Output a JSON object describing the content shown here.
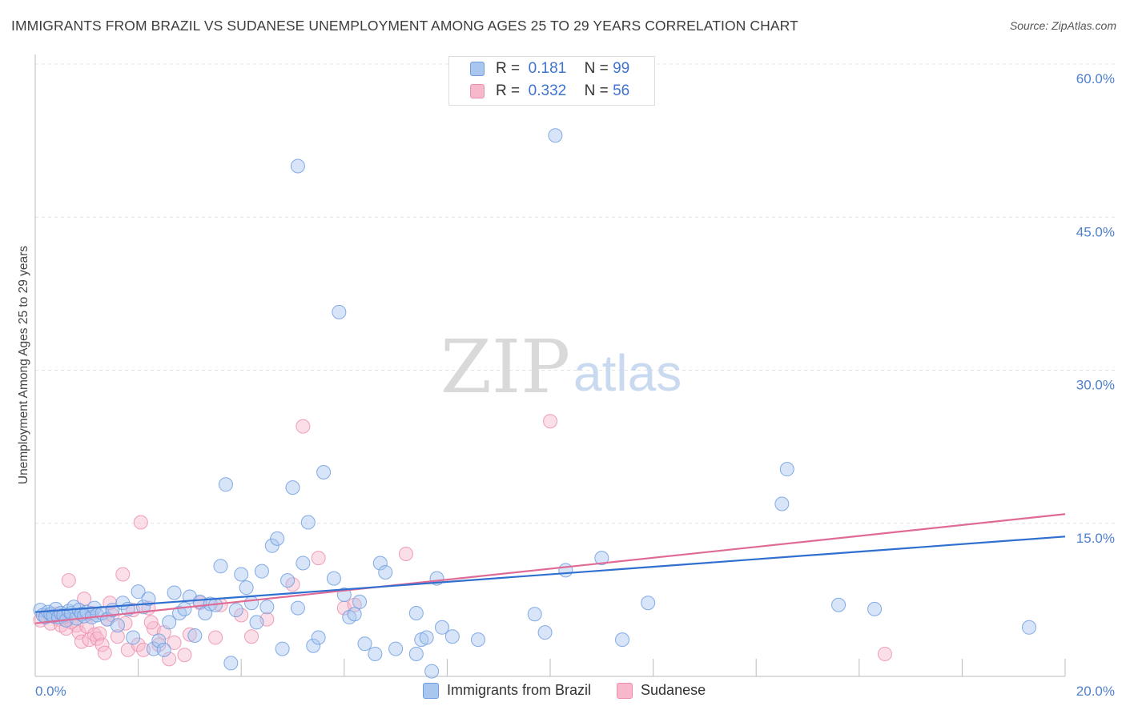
{
  "title": "IMMIGRANTS FROM BRAZIL VS SUDANESE UNEMPLOYMENT AMONG AGES 25 TO 29 YEARS CORRELATION CHART",
  "source": "Source: ZipAtlas.com",
  "watermark": {
    "zip": "ZIP",
    "atlas": "atlas"
  },
  "legend": {
    "rows": [
      {
        "r_label": "R =",
        "r_value": "0.181",
        "n_label": "N =",
        "n_value": "99"
      },
      {
        "r_label": "R =",
        "r_value": "0.332",
        "n_label": "N =",
        "n_value": "56"
      }
    ]
  },
  "bottom_legend": {
    "series1": "Immigrants from Brazil",
    "series2": "Sudanese"
  },
  "colors": {
    "series1_fill": "#a9c6ef",
    "series1_stroke": "#6f9ee0",
    "series1_line": "#2f6fcf",
    "series2_fill": "#f7b8cb",
    "series2_stroke": "#ec8fac",
    "series2_line": "#e06a96",
    "tick": "#4f80cc",
    "grid": "#e3e3e3"
  },
  "chart_data": {
    "type": "scatter",
    "title": "IMMIGRANTS FROM BRAZIL VS SUDANESE UNEMPLOYMENT AMONG AGES 25 TO 29 YEARS CORRELATION CHART",
    "xlabel": "",
    "ylabel": "Unemployment Among Ages 25 to 29 years",
    "xlim": [
      0,
      20
    ],
    "ylim": [
      0,
      60
    ],
    "x_tick_labels": [
      "0.0%",
      "20.0%"
    ],
    "y_ticks": [
      15,
      30,
      45,
      60
    ],
    "y_tick_labels": [
      "15.0%",
      "30.0%",
      "45.0%",
      "60.0%"
    ],
    "grid": true,
    "legend_position": "top-center",
    "series": [
      {
        "name": "Immigrants from Brazil",
        "r": 0.181,
        "n": 99,
        "trend": [
          [
            0,
            6.3
          ],
          [
            20,
            13.7
          ]
        ],
        "points": [
          [
            0.1,
            6.5
          ],
          [
            0.15,
            6.0
          ],
          [
            0.2,
            5.8
          ],
          [
            0.25,
            6.3
          ],
          [
            0.3,
            6.1
          ],
          [
            0.35,
            5.9
          ],
          [
            0.4,
            6.6
          ],
          [
            0.45,
            5.8
          ],
          [
            0.5,
            6.2
          ],
          [
            0.55,
            6.0
          ],
          [
            0.6,
            5.5
          ],
          [
            0.65,
            6.4
          ],
          [
            0.7,
            6.2
          ],
          [
            0.75,
            6.8
          ],
          [
            0.8,
            5.7
          ],
          [
            0.85,
            6.5
          ],
          [
            0.9,
            6.1
          ],
          [
            0.95,
            5.9
          ],
          [
            1.0,
            6.3
          ],
          [
            1.1,
            5.8
          ],
          [
            1.15,
            6.7
          ],
          [
            1.2,
            6.0
          ],
          [
            1.3,
            6.2
          ],
          [
            1.4,
            5.6
          ],
          [
            1.5,
            6.5
          ],
          [
            1.6,
            5.0
          ],
          [
            1.7,
            7.2
          ],
          [
            1.8,
            6.6
          ],
          [
            1.9,
            3.8
          ],
          [
            2.0,
            8.3
          ],
          [
            2.1,
            6.8
          ],
          [
            2.2,
            7.6
          ],
          [
            2.3,
            2.7
          ],
          [
            2.4,
            3.5
          ],
          [
            2.5,
            2.6
          ],
          [
            2.6,
            5.3
          ],
          [
            2.7,
            8.2
          ],
          [
            2.8,
            6.2
          ],
          [
            2.9,
            6.6
          ],
          [
            3.0,
            7.8
          ],
          [
            3.1,
            4.0
          ],
          [
            3.2,
            7.3
          ],
          [
            3.3,
            6.2
          ],
          [
            3.4,
            7.1
          ],
          [
            3.6,
            10.8
          ],
          [
            3.7,
            18.8
          ],
          [
            3.8,
            1.3
          ],
          [
            3.9,
            6.5
          ],
          [
            4.0,
            10.0
          ],
          [
            4.1,
            8.7
          ],
          [
            4.2,
            7.2
          ],
          [
            4.3,
            5.3
          ],
          [
            4.4,
            10.3
          ],
          [
            4.5,
            6.8
          ],
          [
            4.6,
            12.8
          ],
          [
            4.7,
            13.5
          ],
          [
            4.8,
            2.7
          ],
          [
            4.9,
            9.4
          ],
          [
            5.0,
            18.5
          ],
          [
            5.1,
            6.7
          ],
          [
            5.2,
            11.1
          ],
          [
            5.3,
            15.1
          ],
          [
            5.4,
            3.0
          ],
          [
            5.5,
            3.8
          ],
          [
            5.6,
            20.0
          ],
          [
            5.8,
            9.6
          ],
          [
            5.9,
            35.7
          ],
          [
            6.0,
            8.0
          ],
          [
            6.1,
            5.8
          ],
          [
            6.2,
            6.1
          ],
          [
            6.3,
            7.3
          ],
          [
            6.4,
            3.2
          ],
          [
            6.6,
            2.2
          ],
          [
            6.7,
            11.1
          ],
          [
            6.8,
            10.2
          ],
          [
            7.0,
            2.7
          ],
          [
            7.4,
            2.2
          ],
          [
            7.5,
            3.6
          ],
          [
            7.6,
            3.8
          ],
          [
            7.7,
            0.5
          ],
          [
            7.8,
            9.6
          ],
          [
            7.9,
            4.8
          ],
          [
            8.1,
            3.9
          ],
          [
            8.6,
            3.6
          ],
          [
            9.7,
            6.1
          ],
          [
            9.9,
            4.3
          ],
          [
            10.1,
            53.0
          ],
          [
            10.3,
            10.4
          ],
          [
            11.0,
            11.6
          ],
          [
            11.4,
            3.6
          ],
          [
            11.9,
            7.2
          ],
          [
            14.5,
            16.9
          ],
          [
            14.6,
            20.3
          ],
          [
            15.6,
            7.0
          ],
          [
            16.3,
            6.6
          ],
          [
            19.3,
            4.8
          ],
          [
            5.1,
            50.0
          ],
          [
            7.4,
            6.2
          ],
          [
            3.5,
            7.0
          ]
        ]
      },
      {
        "name": "Sudanese",
        "r": 0.332,
        "n": 56,
        "trend": [
          [
            0,
            5.2
          ],
          [
            20,
            15.9
          ]
        ],
        "points": [
          [
            0.1,
            5.5
          ],
          [
            0.2,
            5.9
          ],
          [
            0.3,
            5.2
          ],
          [
            0.4,
            6.1
          ],
          [
            0.45,
            5.6
          ],
          [
            0.5,
            5.0
          ],
          [
            0.6,
            4.7
          ],
          [
            0.65,
            9.4
          ],
          [
            0.7,
            5.3
          ],
          [
            0.8,
            5.0
          ],
          [
            0.85,
            4.3
          ],
          [
            0.9,
            3.4
          ],
          [
            0.95,
            7.6
          ],
          [
            1.0,
            4.9
          ],
          [
            1.05,
            3.6
          ],
          [
            1.1,
            6.2
          ],
          [
            1.15,
            4.1
          ],
          [
            1.2,
            3.7
          ],
          [
            1.3,
            3.1
          ],
          [
            1.35,
            2.3
          ],
          [
            1.4,
            5.6
          ],
          [
            1.45,
            7.2
          ],
          [
            1.5,
            6.0
          ],
          [
            1.6,
            3.9
          ],
          [
            1.7,
            10.0
          ],
          [
            1.75,
            5.2
          ],
          [
            1.8,
            2.6
          ],
          [
            1.9,
            6.5
          ],
          [
            2.0,
            3.1
          ],
          [
            2.05,
            15.1
          ],
          [
            2.1,
            2.6
          ],
          [
            2.2,
            6.7
          ],
          [
            2.3,
            4.7
          ],
          [
            2.4,
            3.1
          ],
          [
            2.5,
            4.3
          ],
          [
            2.6,
            1.7
          ],
          [
            2.7,
            3.3
          ],
          [
            2.9,
            2.1
          ],
          [
            3.0,
            4.1
          ],
          [
            3.2,
            7.2
          ],
          [
            3.6,
            7.0
          ],
          [
            4.0,
            6.0
          ],
          [
            4.2,
            3.9
          ],
          [
            4.5,
            5.6
          ],
          [
            5.0,
            9.0
          ],
          [
            5.2,
            24.5
          ],
          [
            5.5,
            11.6
          ],
          [
            6.0,
            6.7
          ],
          [
            6.2,
            7.0
          ],
          [
            7.2,
            12.0
          ],
          [
            10.0,
            25.0
          ],
          [
            16.5,
            2.2
          ],
          [
            0.55,
            5.8
          ],
          [
            1.25,
            4.2
          ],
          [
            2.25,
            5.3
          ],
          [
            3.5,
            3.8
          ]
        ]
      }
    ]
  }
}
